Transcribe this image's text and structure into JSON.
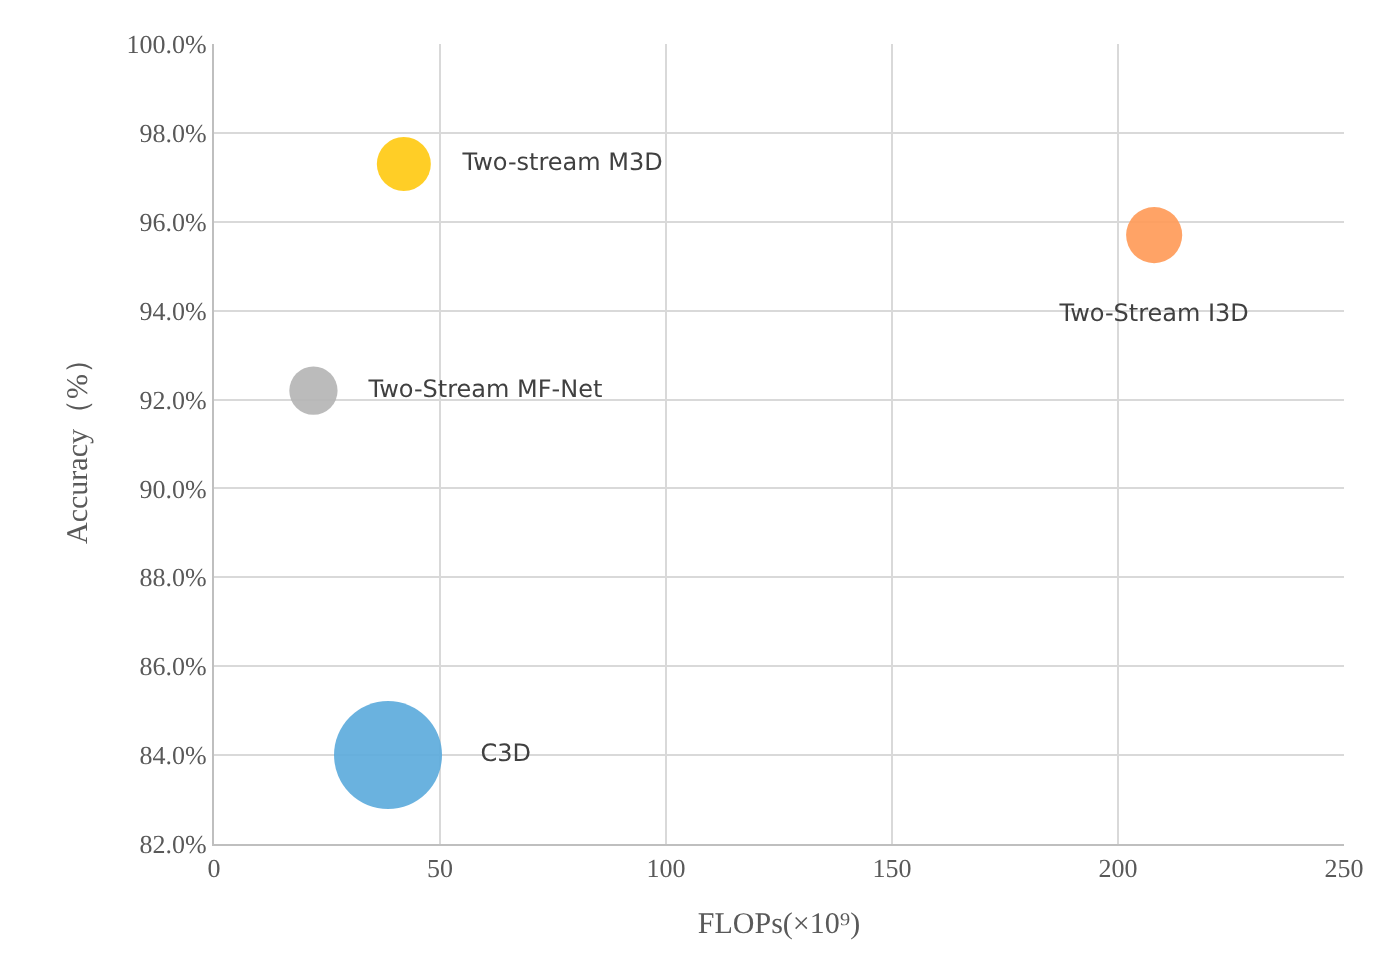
{
  "chart_data": {
    "type": "bubble",
    "xlabel": "FLOPs(×10⁹)",
    "ylabel": "Accuracy（%）",
    "series": [
      {
        "name": "Two-stream M3D",
        "color": "#ffc90e",
        "x": [
          42
        ],
        "values": [
          97.3
        ],
        "sizes": [
          0.25
        ]
      },
      {
        "name": "Two-Stream I3D",
        "color": "#ff9955",
        "x": [
          208
        ],
        "values": [
          95.7
        ],
        "sizes": [
          0.27
        ]
      },
      {
        "name": "Two-Stream MF-Net",
        "color": "#b4b4b4",
        "x": [
          22
        ],
        "values": [
          92.2
        ],
        "sizes": [
          0.2
        ]
      },
      {
        "name": "C3D",
        "color": "#5aaadc",
        "x": [
          38.5
        ],
        "values": [
          84.0
        ],
        "sizes": [
          1
        ]
      }
    ],
    "xlim": [
      0,
      250
    ],
    "xticks": [
      0,
      50,
      100,
      150,
      200,
      250
    ],
    "ylim": [
      82,
      100
    ],
    "yticks": [
      {
        "value": 82,
        "label": "82.0%"
      },
      {
        "value": 84,
        "label": "84.0%"
      },
      {
        "value": 86,
        "label": "86.0%"
      },
      {
        "value": 88,
        "label": "88.0%"
      },
      {
        "value": 90,
        "label": "90.0%"
      },
      {
        "value": 92,
        "label": "92.0%"
      },
      {
        "value": 94,
        "label": "94.0%"
      },
      {
        "value": 96,
        "label": "96.0%"
      },
      {
        "value": 98,
        "label": "98.0%"
      },
      {
        "value": 100,
        "label": "100.0%"
      }
    ],
    "grid": true,
    "legend": false
  }
}
